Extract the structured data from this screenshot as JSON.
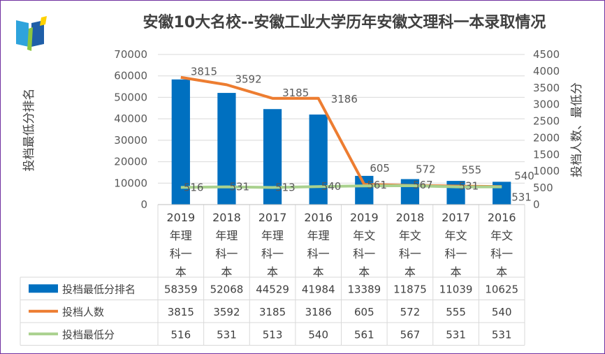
{
  "chart_data": {
    "type": "bar",
    "title": "安徽10大名校--安徽工业大学历年安徽文理科一本录取情况",
    "categories": [
      [
        "2019",
        "年理",
        "科一",
        "本"
      ],
      [
        "2018",
        "年理",
        "科一",
        "本"
      ],
      [
        "2017",
        "年理",
        "科一",
        "本"
      ],
      [
        "2016",
        "年理",
        "科一",
        "本"
      ],
      [
        "2019",
        "年文",
        "科一",
        "本"
      ],
      [
        "2018",
        "年文",
        "科一",
        "本"
      ],
      [
        "2017",
        "年文",
        "科一",
        "本"
      ],
      [
        "2016",
        "年文",
        "科一",
        "本"
      ]
    ],
    "ylabel": "投档最低分排名",
    "y2label": "投档人数、最低分",
    "ylim": [
      0,
      70000
    ],
    "y2lim": [
      0,
      4500
    ],
    "yticks": [
      "0",
      "10000",
      "20000",
      "30000",
      "40000",
      "50000",
      "60000",
      "70000"
    ],
    "y2ticks": [
      "0",
      "500",
      "1000",
      "1500",
      "2000",
      "2500",
      "3000",
      "3500",
      "4000",
      "4500"
    ],
    "grid": true,
    "legend": "data-table",
    "series": [
      {
        "name": "投档最低分排名",
        "type": "bar",
        "axis": "left",
        "color": "#0070c0",
        "values": [
          58359,
          52068,
          44529,
          41984,
          13389,
          11875,
          11039,
          10625
        ]
      },
      {
        "name": "投档人数",
        "type": "line",
        "axis": "right",
        "color": "#ed7d31",
        "values": [
          3815,
          3592,
          3185,
          3186,
          605,
          572,
          555,
          540
        ]
      },
      {
        "name": "投档最低分",
        "type": "line",
        "axis": "right",
        "color": "#a9d18e",
        "values": [
          516,
          531,
          513,
          540,
          561,
          567,
          531,
          531
        ]
      }
    ]
  },
  "logo": {
    "colors": [
      "#2ea3dc",
      "#1f5fa8",
      "#8dc63f",
      "#ffd200"
    ]
  }
}
